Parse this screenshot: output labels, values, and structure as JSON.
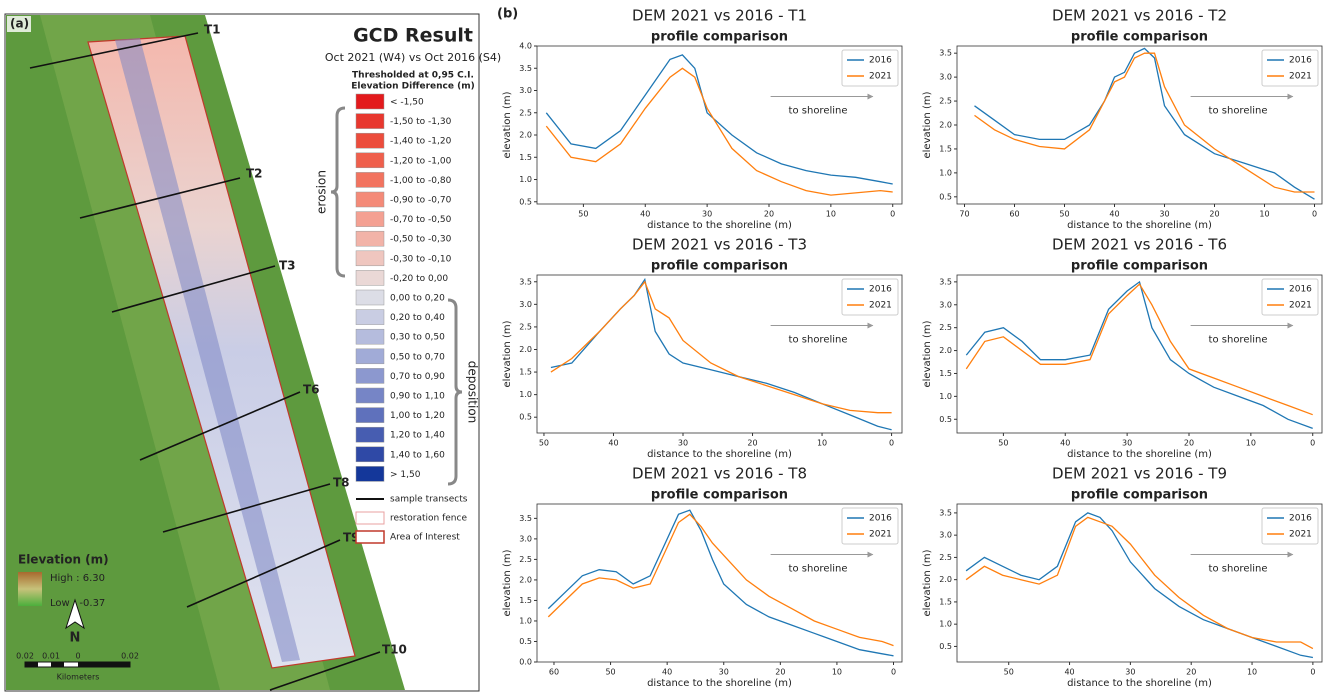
{
  "map": {
    "panel_label": "(a)",
    "legend_title": "GCD Result",
    "legend_subtitle": "Oct 2021 (W4) vs Oct 2016 (S4)",
    "threshold": "Thresholded at 0,95 C.I.",
    "classes_title": "Elevation Difference (m)",
    "classes": [
      {
        "label": "< -1,50",
        "color": "#e31a1c"
      },
      {
        "label": "-1,50 to -1,30",
        "color": "#e8372e"
      },
      {
        "label": "-1,40 to -1,20",
        "color": "#ec4c3c"
      },
      {
        "label": "-1,20 to -1,00",
        "color": "#ef5f4c"
      },
      {
        "label": "-1,00 to -0,80",
        "color": "#f2735f"
      },
      {
        "label": "-0,90 to -0,70",
        "color": "#f48a78"
      },
      {
        "label": "-0,70 to -0,50",
        "color": "#f4a092"
      },
      {
        "label": "-0,50 to -0,30",
        "color": "#f2b3a8"
      },
      {
        "label": "-0,30 to -0,10",
        "color": "#efc6bf"
      },
      {
        "label": "-0,20 to 0,00",
        "color": "#ead8d6"
      },
      {
        "label": "0,00 to 0,20",
        "color": "#dcdde6"
      },
      {
        "label": "0,20 to 0,40",
        "color": "#c9cde3"
      },
      {
        "label": "0,30 to 0,50",
        "color": "#b5bcdd"
      },
      {
        "label": "0,50 to 0,70",
        "color": "#a1abd7"
      },
      {
        "label": "0,70 to 0,90",
        "color": "#8c98cf"
      },
      {
        "label": "0,90 to 1,10",
        "color": "#7685c6"
      },
      {
        "label": "1,00 to 1,20",
        "color": "#5f71bc"
      },
      {
        "label": "1,20 to 1,40",
        "color": "#475db1"
      },
      {
        "label": "1,40 to 1,60",
        "color": "#2f49a6"
      },
      {
        "label": "> 1,50",
        "color": "#14379a"
      }
    ],
    "erosion": "erosion",
    "deposition": "deposition",
    "sample_transects": "sample transects",
    "restoration_fence": "restoration fence",
    "area_of_interest": "Area of Interest",
    "elevation_title": "Elevation (m)",
    "elevation_high": "High : 6.30",
    "elevation_low": "Low : -0.37",
    "north": "N",
    "scale_labels": [
      "0.02",
      "0.01",
      "0",
      "0.02"
    ],
    "scale_unit": "Kilometers",
    "transects": [
      "T1",
      "T2",
      "T3",
      "T6",
      "T8",
      "T9",
      "T10"
    ]
  },
  "panel_b_label": "(b)",
  "chart_data": [
    {
      "type": "line",
      "title": "DEM 2021 vs 2016 - T1",
      "subtitle": "profile comparison",
      "x_label": "distance to the shoreline (m)",
      "y_label": "elevation (m)",
      "annotation": "to shoreline",
      "legend": "upper right",
      "x": [
        56,
        52,
        48,
        44,
        40,
        36,
        34,
        32,
        30,
        26,
        22,
        18,
        14,
        10,
        6,
        2,
        0
      ],
      "series": [
        {
          "name": "2016",
          "color": "#1f77b4",
          "values": [
            2.5,
            1.8,
            1.7,
            2.1,
            2.9,
            3.7,
            3.8,
            3.5,
            2.5,
            2.0,
            1.6,
            1.35,
            1.2,
            1.1,
            1.05,
            0.95,
            0.9
          ]
        },
        {
          "name": "2021",
          "color": "#ff7f0e",
          "values": [
            2.2,
            1.5,
            1.4,
            1.8,
            2.6,
            3.3,
            3.5,
            3.3,
            2.6,
            1.7,
            1.2,
            0.95,
            0.75,
            0.65,
            0.7,
            0.75,
            0.72
          ]
        }
      ],
      "xlim": [
        57.5,
        -1.5
      ],
      "xticks": [
        50,
        40,
        30,
        20,
        10,
        0
      ],
      "ylim": [
        0.45,
        4.0
      ],
      "yticks": [
        0.5,
        {
          "value": 1,
          "label": "1.0"
        },
        1.5,
        {
          "value": 2,
          "label": "2.0"
        },
        2.5,
        {
          "value": 3,
          "label": "3.0"
        },
        3.5,
        {
          "value": 4,
          "label": "4.0"
        }
      ]
    },
    {
      "type": "line",
      "title": "DEM 2021 vs 2016 - T2",
      "subtitle": "profile comparison",
      "x_label": "distance to the shoreline (m)",
      "y_label": "elevation (m)",
      "annotation": "to shoreline",
      "legend": "upper right",
      "x": [
        68,
        64,
        60,
        55,
        50,
        45,
        42,
        40,
        38,
        36,
        34,
        32,
        30,
        26,
        20,
        14,
        8,
        4,
        0
      ],
      "series": [
        {
          "name": "2016",
          "color": "#1f77b4",
          "values": [
            2.4,
            2.1,
            1.8,
            1.7,
            1.7,
            2.0,
            2.5,
            3.0,
            3.1,
            3.5,
            3.6,
            3.4,
            2.4,
            1.8,
            1.4,
            1.2,
            1.0,
            0.7,
            0.45
          ]
        },
        {
          "name": "2021",
          "color": "#ff7f0e",
          "values": [
            2.2,
            1.9,
            1.7,
            1.55,
            1.5,
            1.9,
            2.5,
            2.9,
            3.0,
            3.4,
            3.5,
            3.5,
            2.8,
            2.0,
            1.5,
            1.1,
            0.7,
            0.6,
            0.6
          ]
        }
      ],
      "xlim": [
        71.5,
        -1.5
      ],
      "xticks": [
        70,
        60,
        50,
        40,
        30,
        20,
        10,
        0
      ],
      "ylim": [
        0.35,
        3.65
      ],
      "yticks": [
        0.5,
        {
          "value": 1,
          "label": "1.0"
        },
        1.5,
        {
          "value": 2,
          "label": "2.0"
        },
        2.5,
        {
          "value": 3,
          "label": "3.0"
        },
        3.5
      ]
    },
    {
      "type": "line",
      "title": "DEM 2021 vs 2016 - T3",
      "subtitle": "profile comparison",
      "x_label": "distance to the shoreline (m)",
      "y_label": "elevation (m)",
      "annotation": "to shoreline",
      "legend": "upper right",
      "x": [
        49,
        46,
        42,
        39,
        37,
        35.5,
        34,
        32,
        30,
        26,
        22,
        18,
        14,
        10,
        6,
        2,
        0
      ],
      "series": [
        {
          "name": "2016",
          "color": "#1f77b4",
          "values": [
            1.6,
            1.7,
            2.4,
            2.9,
            3.2,
            3.55,
            2.4,
            1.9,
            1.7,
            1.55,
            1.4,
            1.25,
            1.05,
            0.8,
            0.55,
            0.3,
            0.22
          ]
        },
        {
          "name": "2021",
          "color": "#ff7f0e",
          "values": [
            1.5,
            1.8,
            2.4,
            2.9,
            3.2,
            3.5,
            2.9,
            2.7,
            2.2,
            1.7,
            1.4,
            1.2,
            1.0,
            0.8,
            0.65,
            0.6,
            0.6
          ]
        }
      ],
      "xlim": [
        51,
        -1.5
      ],
      "xticks": [
        50,
        40,
        30,
        20,
        10,
        0
      ],
      "ylim": [
        0.15,
        3.65
      ],
      "yticks": [
        0.5,
        {
          "value": 1,
          "label": "1.0"
        },
        1.5,
        {
          "value": 2,
          "label": "2.0"
        },
        2.5,
        {
          "value": 3,
          "label": "3.0"
        },
        3.5
      ]
    },
    {
      "type": "line",
      "title": "DEM 2021 vs 2016 - T6",
      "subtitle": "profile comparison",
      "x_label": "distance to the shoreline (m)",
      "y_label": "elevation (m)",
      "annotation": "to shoreline",
      "legend": "upper right",
      "x": [
        56,
        53,
        50,
        47,
        44,
        40,
        36,
        33,
        30,
        28,
        26,
        23,
        20,
        16,
        12,
        8,
        4,
        0
      ],
      "series": [
        {
          "name": "2016",
          "color": "#1f77b4",
          "values": [
            1.9,
            2.4,
            2.5,
            2.2,
            1.8,
            1.8,
            1.9,
            2.9,
            3.3,
            3.5,
            2.5,
            1.8,
            1.5,
            1.2,
            1.0,
            0.8,
            0.5,
            0.3
          ]
        },
        {
          "name": "2021",
          "color": "#ff7f0e",
          "values": [
            1.6,
            2.2,
            2.3,
            2.0,
            1.7,
            1.7,
            1.8,
            2.8,
            3.2,
            3.45,
            3.0,
            2.2,
            1.6,
            1.4,
            1.2,
            1.0,
            0.8,
            0.6
          ]
        }
      ],
      "xlim": [
        57.5,
        -1.5
      ],
      "xticks": [
        50,
        40,
        30,
        20,
        10,
        0
      ],
      "ylim": [
        0.2,
        3.65
      ],
      "yticks": [
        0.5,
        {
          "value": 1,
          "label": "1.0"
        },
        1.5,
        {
          "value": 2,
          "label": "2.0"
        },
        2.5,
        {
          "value": 3,
          "label": "3.0"
        },
        3.5
      ]
    },
    {
      "type": "line",
      "title": "DEM 2021 vs 2016 - T8",
      "subtitle": "profile comparison",
      "x_label": "distance to the shoreline (m)",
      "y_label": "elevation (m)",
      "annotation": "to shoreline",
      "legend": "upper right",
      "x": [
        61,
        58,
        55,
        52,
        49,
        46,
        43,
        40,
        38,
        36,
        34,
        32,
        30,
        26,
        22,
        18,
        14,
        10,
        6,
        2,
        0
      ],
      "series": [
        {
          "name": "2016",
          "color": "#1f77b4",
          "values": [
            1.3,
            1.7,
            2.1,
            2.25,
            2.2,
            1.9,
            2.1,
            3.0,
            3.6,
            3.7,
            3.2,
            2.5,
            1.9,
            1.4,
            1.1,
            0.9,
            0.7,
            0.5,
            0.3,
            0.2,
            0.15
          ]
        },
        {
          "name": "2021",
          "color": "#ff7f0e",
          "values": [
            1.1,
            1.5,
            1.9,
            2.05,
            2.0,
            1.8,
            1.9,
            2.8,
            3.4,
            3.6,
            3.3,
            2.9,
            2.6,
            2.0,
            1.6,
            1.3,
            1.0,
            0.8,
            0.6,
            0.5,
            0.4
          ]
        }
      ],
      "xlim": [
        63,
        -1.5
      ],
      "xticks": [
        60,
        50,
        40,
        30,
        20,
        10,
        0
      ],
      "ylim": [
        0,
        3.85
      ],
      "yticks": [
        {
          "value": 0,
          "label": "0.0"
        },
        0.5,
        {
          "value": 1,
          "label": "1.0"
        },
        1.5,
        {
          "value": 2,
          "label": "2.0"
        },
        2.5,
        {
          "value": 3,
          "label": "3.0"
        },
        3.5
      ]
    },
    {
      "type": "line",
      "title": "DEM 2021 vs 2016 - T9",
      "subtitle": "profile comparison",
      "x_label": "distance to the shoreline (m)",
      "y_label": "elevation (m)",
      "annotation": "to shoreline",
      "legend": "upper right",
      "x": [
        57,
        54,
        51,
        48,
        45,
        42,
        39,
        37,
        35,
        33,
        30,
        26,
        22,
        18,
        14,
        10,
        6,
        2,
        0
      ],
      "series": [
        {
          "name": "2016",
          "color": "#1f77b4",
          "values": [
            2.2,
            2.5,
            2.3,
            2.1,
            2.0,
            2.3,
            3.3,
            3.5,
            3.4,
            3.1,
            2.4,
            1.8,
            1.4,
            1.1,
            0.9,
            0.7,
            0.5,
            0.3,
            0.25
          ]
        },
        {
          "name": "2021",
          "color": "#ff7f0e",
          "values": [
            2.0,
            2.3,
            2.1,
            2.0,
            1.9,
            2.1,
            3.2,
            3.4,
            3.3,
            3.2,
            2.8,
            2.1,
            1.6,
            1.2,
            0.9,
            0.7,
            0.6,
            0.6,
            0.45
          ]
        }
      ],
      "xlim": [
        58.5,
        -1.5
      ],
      "xticks": [
        50,
        40,
        30,
        20,
        10,
        0
      ],
      "ylim": [
        0.15,
        3.7
      ],
      "yticks": [
        0.5,
        {
          "value": 1,
          "label": "1.0"
        },
        1.5,
        {
          "value": 2,
          "label": "2.0"
        },
        2.5,
        {
          "value": 3,
          "label": "3.0"
        },
        3.5
      ]
    }
  ]
}
